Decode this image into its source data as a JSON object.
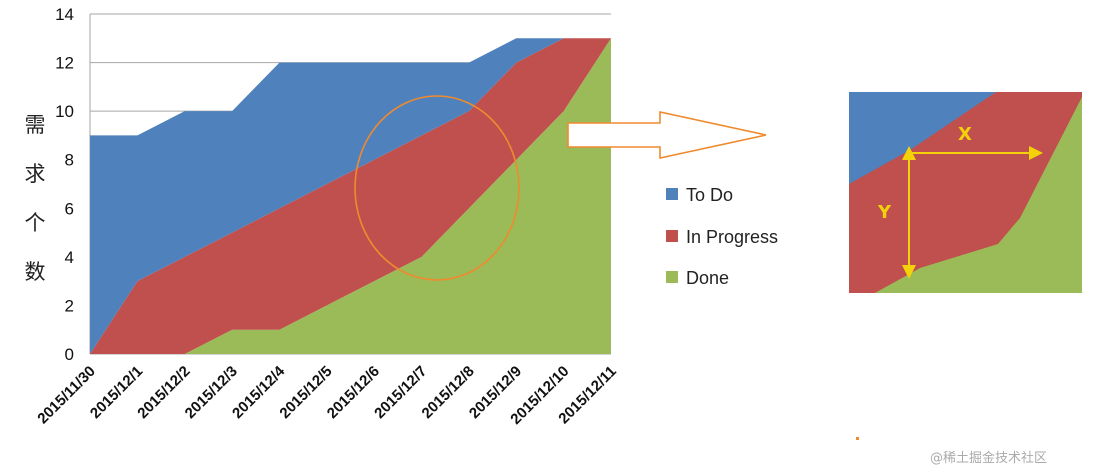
{
  "chart_data": {
    "type": "area",
    "stacked": true,
    "ylabel": "需求个数",
    "ylim": [
      0,
      14
    ],
    "yticks": [
      0,
      2,
      4,
      6,
      8,
      10,
      12,
      14
    ],
    "grid": true,
    "legend_position": "right",
    "categories": [
      "2015/11/30",
      "2015/12/1",
      "2015/12/2",
      "2015/12/3",
      "2015/12/4",
      "2015/12/5",
      "2015/12/6",
      "2015/12/7",
      "2015/12/8",
      "2015/12/9",
      "2015/12/10",
      "2015/12/11"
    ],
    "series": [
      {
        "name": "Done",
        "color": "#9bbb59",
        "values": [
          0,
          0,
          0,
          1,
          1,
          2,
          3,
          4,
          6,
          8,
          10,
          13
        ]
      },
      {
        "name": "In Progress",
        "color": "#c0504d",
        "values": [
          0,
          3,
          4,
          4,
          5,
          5,
          5,
          5,
          4,
          4,
          3,
          0
        ]
      },
      {
        "name": "To Do",
        "color": "#4f81bd",
        "values": [
          9,
          6,
          6,
          5,
          6,
          5,
          4,
          3,
          2,
          1,
          0,
          0
        ]
      }
    ]
  },
  "legend": [
    {
      "label": "To Do",
      "color": "#4f81bd"
    },
    {
      "label": "In Progress",
      "color": "#c0504d"
    },
    {
      "label": "Done",
      "color": "#9bbb59"
    }
  ],
  "annotation": {
    "x_label": "X",
    "y_label": "Y",
    "circle_color": "#f08a2e",
    "arrow_color": "#f08a2e",
    "measure_color": "#f4d20a"
  },
  "watermark": "@稀土掘金技术社区"
}
